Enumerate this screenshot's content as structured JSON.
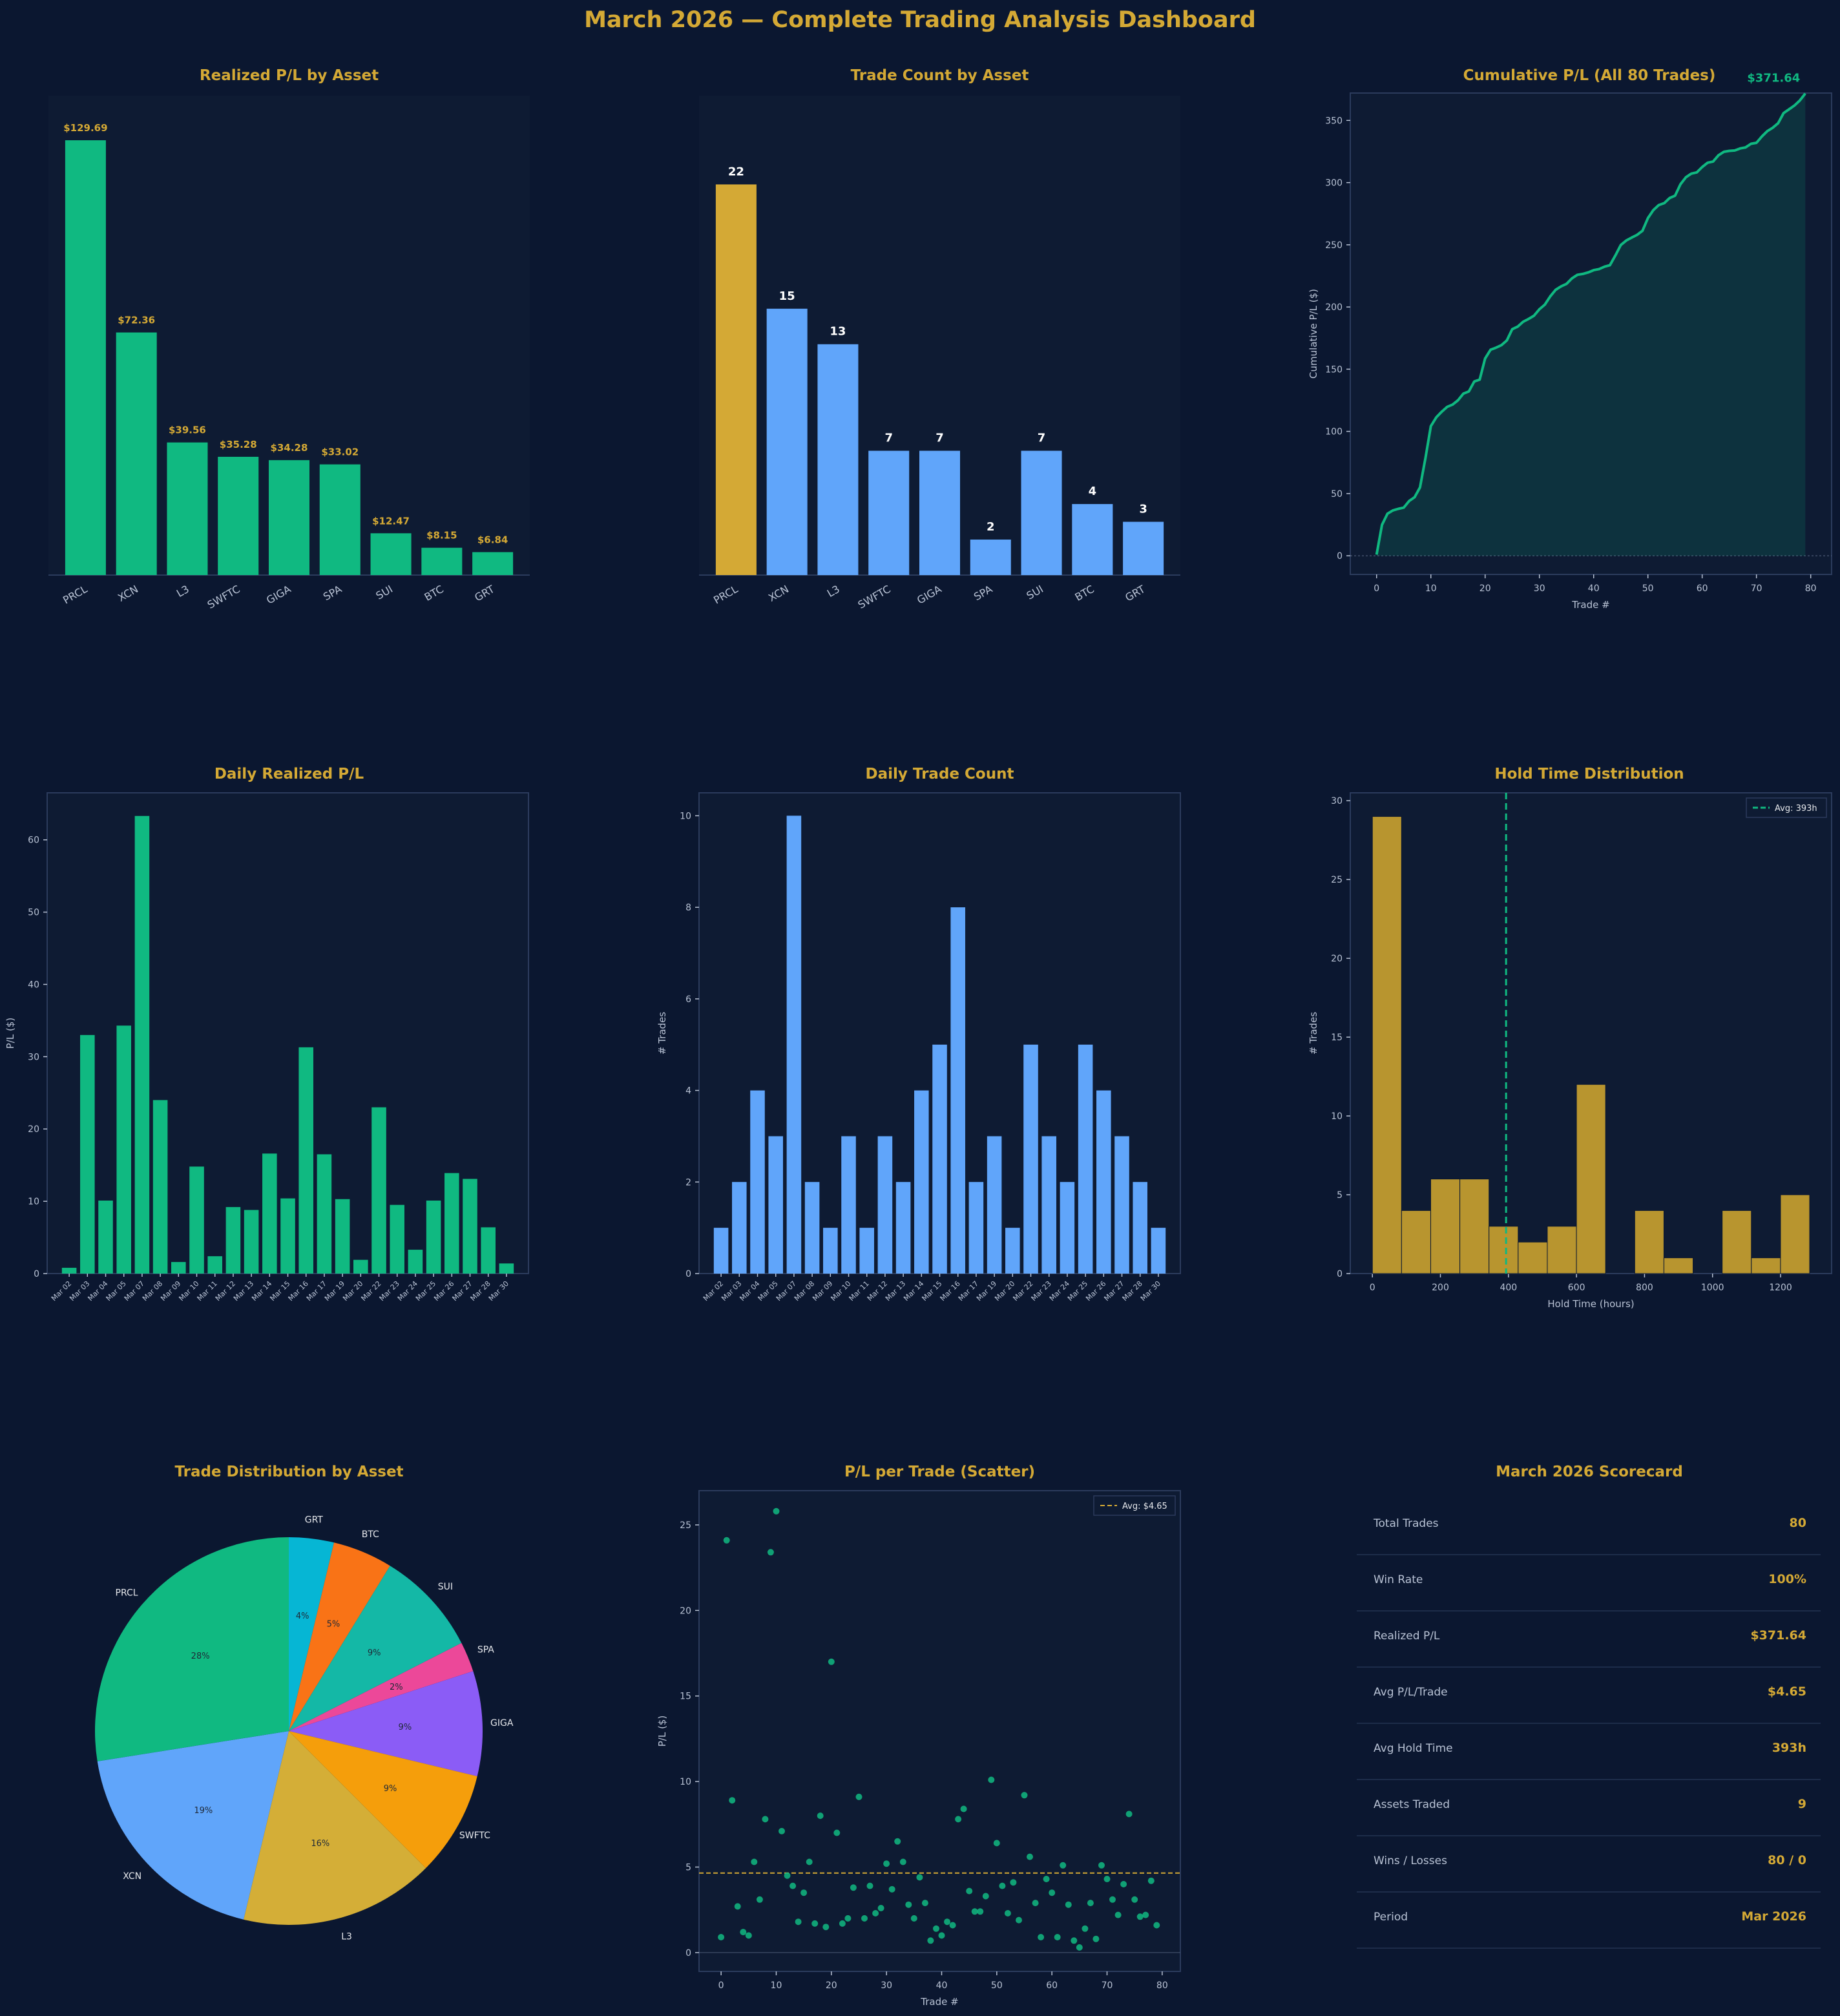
{
  "title": "March 2026 — Complete Trading Analysis Dashboard",
  "colors": {
    "background": "#0b1730",
    "panel": "#0e1b33",
    "accent_gold": "#d4a935",
    "green": "#10b981",
    "blue": "#60a5fa",
    "hold_bar": "#b8952f",
    "text_muted": "#b8c2d4",
    "axis": "#2b3b5c"
  },
  "chart_data": [
    {
      "id": "realized",
      "type": "bar",
      "title": "Realized P/L by Asset",
      "categories": [
        "PRCL",
        "XCN",
        "L3",
        "SWFTC",
        "GIGA",
        "SPA",
        "SUI",
        "BTC",
        "GRT"
      ],
      "values": [
        129.69,
        72.36,
        39.56,
        35.28,
        34.28,
        33.02,
        12.47,
        8.15,
        6.84
      ],
      "data_labels": [
        "$129.69",
        "$72.36",
        "$39.56",
        "$35.28",
        "$34.28",
        "$33.02",
        "$12.47",
        "$8.15",
        "$6.84"
      ],
      "ylim": [
        0,
        143
      ],
      "xlabel": "",
      "ylabel": ""
    },
    {
      "id": "tradecount",
      "type": "bar",
      "title": "Trade Count by Asset",
      "categories": [
        "PRCL",
        "XCN",
        "L3",
        "SWFTC",
        "GIGA",
        "SPA",
        "SUI",
        "BTC",
        "GRT"
      ],
      "values": [
        22,
        15,
        13,
        7,
        7,
        2,
        7,
        4,
        3
      ],
      "ylim": [
        0,
        27
      ],
      "highlight": "PRCL",
      "xlabel": "",
      "ylabel": ""
    },
    {
      "id": "cumulative",
      "type": "area",
      "title": "Cumulative P/L (All 80 Trades)",
      "xlabel": "Trade #",
      "ylabel": "Cumulative P/L ($)",
      "xlim": [
        -4.85,
        83.85
      ],
      "ylim": [
        -15,
        372
      ],
      "xticks": [
        0,
        10,
        20,
        30,
        40,
        50,
        60,
        70,
        80
      ],
      "yticks": [
        0,
        50,
        100,
        150,
        200,
        250,
        300,
        350
      ],
      "final_label": "$371.64",
      "x": [
        0,
        1,
        2,
        3,
        4,
        5,
        6,
        7,
        8,
        9,
        10,
        11,
        12,
        13,
        14,
        15,
        16,
        17,
        18,
        19,
        20,
        21,
        22,
        23,
        24,
        25,
        26,
        27,
        28,
        29,
        30,
        31,
        32,
        33,
        34,
        35,
        36,
        37,
        38,
        39,
        40,
        41,
        42,
        43,
        44,
        45,
        46,
        47,
        48,
        49,
        50,
        51,
        52,
        53,
        54,
        55,
        56,
        57,
        58,
        59,
        60,
        61,
        62,
        63,
        64,
        65,
        66,
        67,
        68,
        69,
        70,
        71,
        72,
        73,
        74,
        75,
        76,
        77,
        78,
        79
      ],
      "y": [
        0.9,
        24.9,
        33.8,
        36.5,
        37.7,
        38.7,
        44.0,
        47.1,
        54.9,
        78.4,
        104.2,
        111.3,
        115.8,
        119.7,
        121.5,
        125.0,
        130.4,
        132.1,
        140.1,
        141.6,
        158.6,
        165.6,
        167.3,
        169.3,
        173.1,
        182.2,
        184.2,
        188.1,
        190.4,
        193.0,
        198.2,
        201.9,
        208.5,
        213.8,
        216.6,
        218.6,
        223.0,
        225.9,
        226.6,
        227.8,
        229.6,
        230.5,
        232.4,
        233.6,
        241.4,
        249.8,
        253.4,
        255.8,
        258.0,
        261.3,
        271.5,
        277.9,
        281.9,
        283.5,
        287.6,
        289.5,
        298.7,
        304.3,
        307.2,
        308.2,
        312.5,
        316.0,
        316.9,
        322.0,
        324.8,
        325.5,
        325.8,
        327.5,
        328.3,
        331.2,
        332.0,
        337.1,
        341.4,
        344.1,
        347.8,
        355.9,
        358.9,
        362.0,
        366.1,
        371.64
      ]
    },
    {
      "id": "daily_pl",
      "type": "bar",
      "title": "Daily Realized P/L",
      "ylabel": "P/L ($)",
      "xlabel": "",
      "ylim": [
        0,
        66.5
      ],
      "yticks": [
        0,
        10,
        20,
        30,
        40,
        50,
        60
      ],
      "categories": [
        "Mar 02",
        "Mar 03",
        "Mar 04",
        "Mar 05",
        "Mar 07",
        "Mar 08",
        "Mar 09",
        "Mar 10",
        "Mar 11",
        "Mar 12",
        "Mar 13",
        "Mar 14",
        "Mar 15",
        "Mar 16",
        "Mar 17",
        "Mar 19",
        "Mar 20",
        "Mar 22",
        "Mar 23",
        "Mar 24",
        "Mar 25",
        "Mar 26",
        "Mar 27",
        "Mar 28",
        "Mar 30"
      ],
      "values": [
        0.8,
        33.0,
        10.1,
        34.3,
        63.3,
        24.0,
        1.6,
        14.8,
        2.4,
        9.2,
        8.8,
        16.6,
        10.4,
        31.3,
        16.5,
        10.3,
        1.9,
        23.0,
        9.5,
        3.3,
        10.1,
        13.9,
        13.1,
        6.4,
        1.4
      ]
    },
    {
      "id": "daily_count",
      "type": "bar",
      "title": "Daily Trade Count",
      "ylabel": "# Trades",
      "xlabel": "",
      "ylim": [
        0,
        10.5
      ],
      "yticks": [
        0,
        2,
        4,
        6,
        8,
        10
      ],
      "categories": [
        "Mar 02",
        "Mar 03",
        "Mar 04",
        "Mar 05",
        "Mar 07",
        "Mar 08",
        "Mar 09",
        "Mar 10",
        "Mar 11",
        "Mar 12",
        "Mar 13",
        "Mar 14",
        "Mar 15",
        "Mar 16",
        "Mar 17",
        "Mar 19",
        "Mar 20",
        "Mar 22",
        "Mar 23",
        "Mar 24",
        "Mar 25",
        "Mar 26",
        "Mar 27",
        "Mar 28",
        "Mar 30"
      ],
      "values": [
        1,
        2,
        4,
        3,
        10,
        2,
        1,
        3,
        1,
        3,
        2,
        4,
        5,
        8,
        2,
        3,
        1,
        5,
        3,
        2,
        5,
        4,
        3,
        2,
        1
      ]
    },
    {
      "id": "holdtime",
      "type": "bar",
      "title": "Hold Time Distribution",
      "xlabel": "Hold Time (hours)",
      "ylabel": "# Trades",
      "bin_edges": [
        0,
        85.7,
        171.4,
        257.1,
        342.8,
        428.5,
        514.2,
        599.9,
        685.6,
        771.3,
        857.0,
        942.7,
        1028.4,
        1114.1,
        1199.8,
        1285.5
      ],
      "counts": [
        29,
        4,
        6,
        6,
        3,
        2,
        3,
        12,
        0,
        4,
        1,
        0,
        4,
        1,
        5
      ],
      "xlim": [
        -65,
        1350
      ],
      "ylim": [
        0,
        30.5
      ],
      "xticks": [
        0,
        200,
        400,
        600,
        800,
        1000,
        1200
      ],
      "yticks": [
        0,
        5,
        10,
        15,
        20,
        25,
        30
      ],
      "avg_line": 393,
      "legend": "Avg: 393h",
      "legend_position": "top-right"
    },
    {
      "id": "distribution",
      "type": "pie",
      "title": "Trade Distribution by Asset",
      "labels": [
        "GRT",
        "BTC",
        "SUI",
        "SPA",
        "GIGA",
        "SWFTC",
        "L3",
        "XCN",
        "PRCL"
      ],
      "values": [
        3,
        4,
        7,
        2,
        7,
        7,
        13,
        15,
        22
      ],
      "percent_labels": [
        "4%",
        "5%",
        "9%",
        "2%",
        "9%",
        "9%",
        "16%",
        "19%",
        "28%"
      ],
      "colors": [
        "#06b6d4",
        "#f97316",
        "#14b8a6",
        "#ec4899",
        "#8b5cf6",
        "#f59e0b",
        "#d4ae37",
        "#60a5fa",
        "#10b981"
      ]
    },
    {
      "id": "scatter",
      "type": "scatter",
      "title": "P/L per Trade (Scatter)",
      "xlabel": "Trade #",
      "ylabel": "P/L ($)",
      "xlim": [
        -4,
        83.3
      ],
      "ylim": [
        -1.1,
        27
      ],
      "xticks": [
        0,
        10,
        20,
        30,
        40,
        50,
        60,
        70,
        80
      ],
      "yticks": [
        0,
        5,
        10,
        15,
        20,
        25
      ],
      "avg_line": 4.65,
      "legend": "Avg: $4.65",
      "legend_position": "top-right",
      "x": [
        0,
        1,
        2,
        3,
        4,
        5,
        6,
        7,
        8,
        9,
        10,
        11,
        12,
        13,
        14,
        15,
        16,
        17,
        18,
        19,
        20,
        21,
        22,
        23,
        24,
        25,
        26,
        27,
        28,
        29,
        30,
        31,
        32,
        33,
        34,
        35,
        36,
        37,
        38,
        39,
        40,
        41,
        42,
        43,
        44,
        45,
        46,
        47,
        48,
        49,
        50,
        51,
        52,
        53,
        54,
        55,
        56,
        57,
        58,
        59,
        60,
        61,
        62,
        63,
        64,
        65,
        66,
        67,
        68,
        69,
        70,
        71,
        72,
        73,
        74,
        75,
        76,
        77,
        78,
        79
      ],
      "y": [
        0.9,
        24.1,
        8.9,
        2.7,
        1.2,
        1.0,
        5.3,
        3.1,
        7.8,
        23.4,
        25.8,
        7.1,
        4.5,
        3.9,
        1.8,
        3.5,
        5.3,
        1.7,
        8.0,
        1.5,
        17.0,
        7.0,
        1.7,
        2.0,
        3.8,
        9.1,
        2.0,
        3.9,
        2.3,
        2.6,
        5.2,
        3.7,
        6.5,
        5.3,
        2.8,
        2.0,
        4.4,
        2.9,
        0.7,
        1.4,
        1.0,
        1.8,
        1.6,
        7.8,
        8.4,
        3.6,
        2.4,
        2.4,
        3.3,
        10.1,
        6.4,
        3.9,
        2.3,
        4.1,
        1.9,
        9.2,
        5.6,
        2.9,
        0.9,
        4.3,
        3.5,
        0.9,
        5.1,
        2.8,
        0.7,
        0.3,
        1.4,
        2.9,
        0.8,
        5.1,
        4.3,
        3.1,
        2.2,
        4.0,
        8.1,
        3.1,
        2.1,
        2.2,
        4.2,
        1.6
      ]
    }
  ],
  "scorecard": {
    "title": "March 2026 Scorecard",
    "rows": [
      {
        "label": "Total Trades",
        "value": "80"
      },
      {
        "label": "Win Rate",
        "value": "100%"
      },
      {
        "label": "Realized P/L",
        "value": "$371.64"
      },
      {
        "label": "Avg P/L/Trade",
        "value": "$4.65"
      },
      {
        "label": "Avg Hold Time",
        "value": "393h"
      },
      {
        "label": "Assets Traded",
        "value": "9"
      },
      {
        "label": "Wins / Losses",
        "value": "80 / 0"
      },
      {
        "label": "Period",
        "value": "Mar 2026"
      }
    ]
  }
}
